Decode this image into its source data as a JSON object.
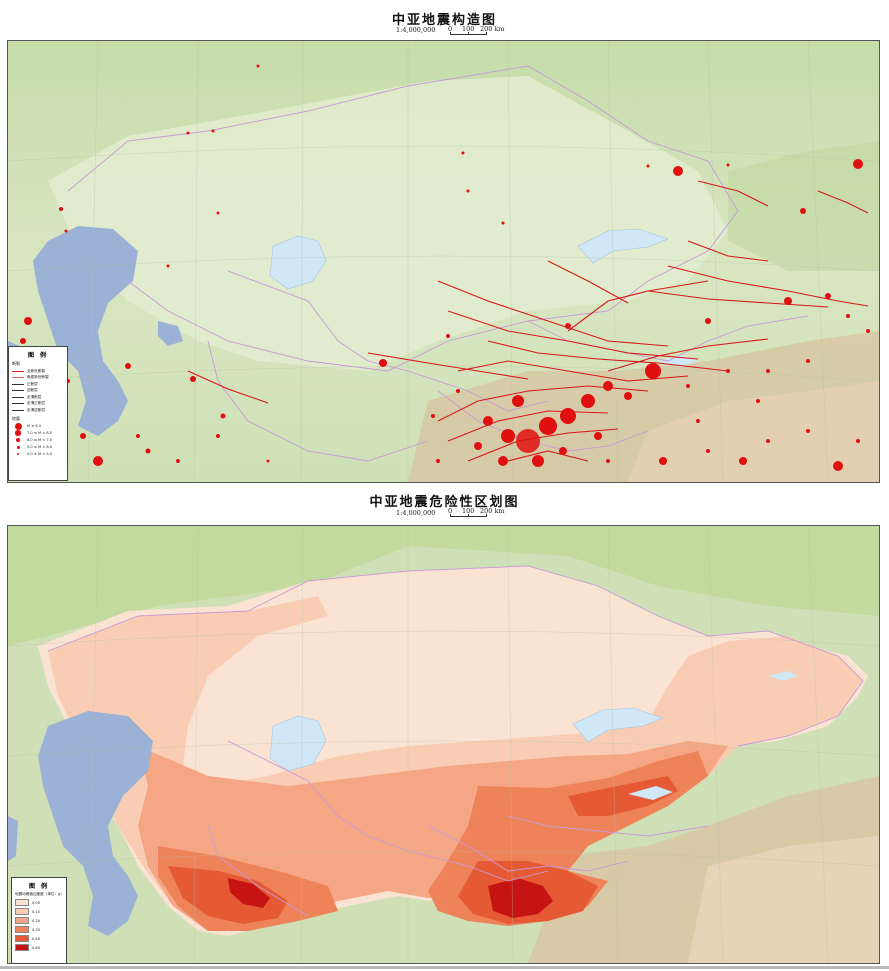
{
  "map_top": {
    "title": "中亚地震构造图",
    "scale": "1:4,000,000",
    "scalebar_labels": [
      "0",
      "100",
      "200 km"
    ],
    "legend": {
      "title": "图 例",
      "faults_heading": "断裂",
      "fault_items": [
        {
          "label": "全新世断裂",
          "color": "#d81818"
        },
        {
          "label": "晚更新世断裂",
          "color": "#e06060"
        },
        {
          "label": "正断层",
          "color": "#333333"
        },
        {
          "label": "逆断层",
          "color": "#333333"
        },
        {
          "label": "走滑断层",
          "color": "#333333"
        },
        {
          "label": "走滑正断层",
          "color": "#333333"
        },
        {
          "label": "走滑逆断层",
          "color": "#333333"
        }
      ],
      "quake_heading": "地震",
      "quake_items": [
        {
          "label": "M ≥ 8.0",
          "size": 7
        },
        {
          "label": "7.0 ≤ M < 8.0",
          "size": 5.5
        },
        {
          "label": "6.0 ≤ M < 7.0",
          "size": 4
        },
        {
          "label": "5.0 ≤ M < 6.0",
          "size": 3
        },
        {
          "label": "4.0 ≤ M < 5.0",
          "size": 2
        }
      ]
    }
  },
  "map_bottom": {
    "title": "中亚地震危险性区划图",
    "scale": "1:4,000,000",
    "scalebar_labels": [
      "0",
      "100",
      "200 km"
    ],
    "legend": {
      "title": "图 例",
      "subtitle": "地震动峰值加速度（单位：g）",
      "items": [
        {
          "label": "0.05",
          "color": "#fbe3d3"
        },
        {
          "label": "0.10",
          "color": "#f9cdb4"
        },
        {
          "label": "0.20",
          "color": "#f4a685"
        },
        {
          "label": "0.30",
          "color": "#ee8259"
        },
        {
          "label": "0.40",
          "color": "#e55a34"
        },
        {
          "label": "0.60",
          "color": "#c51411"
        }
      ]
    }
  },
  "colors": {
    "land_green": "#c8dfb0",
    "land_pale": "#dfe9cb",
    "water": "#9bb2d6",
    "lake": "#cfe7f7",
    "mountain": "#d9c3a4",
    "quake_red": "#e01010",
    "border": "#c89ad8"
  }
}
